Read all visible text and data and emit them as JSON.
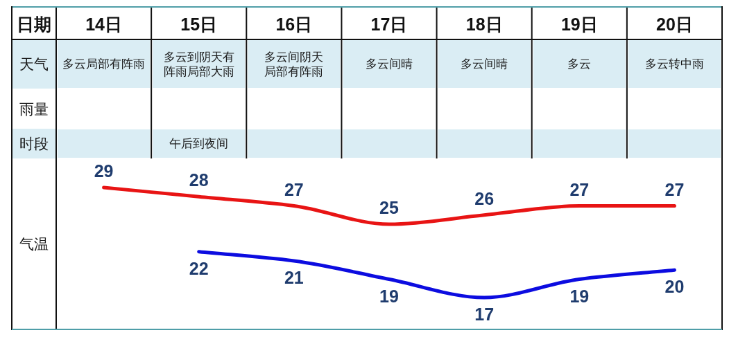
{
  "chart_data": [
    {
      "type": "line",
      "xlabel": "日期",
      "ylabel": "气温",
      "categories": [
        "14日",
        "15日",
        "16日",
        "17日",
        "18日",
        "19日",
        "20日"
      ],
      "data_labels": true,
      "series": [
        {
          "color": "#e81414",
          "values": [
            29,
            28,
            27,
            25,
            26,
            27,
            27
          ]
        },
        {
          "color": "#0c0ce0",
          "values": [
            null,
            22,
            21,
            19,
            17,
            19,
            20
          ]
        }
      ]
    },
    {
      "type": "other",
      "y_categories": [
        "天气",
        "雨量",
        "时段"
      ],
      "cell_labels": [
        [
          "多云局部有阵雨",
          "多云到阴天有阵雨局部大雨",
          "多云间阴天局部有阵雨",
          "多云间晴",
          "多云间晴",
          "多云",
          "多云转中雨"
        ],
        [
          null,
          null,
          null,
          null,
          null,
          null,
          null
        ],
        [
          null,
          "午后到夜间",
          null,
          null,
          null,
          null,
          null
        ]
      ]
    }
  ]
}
